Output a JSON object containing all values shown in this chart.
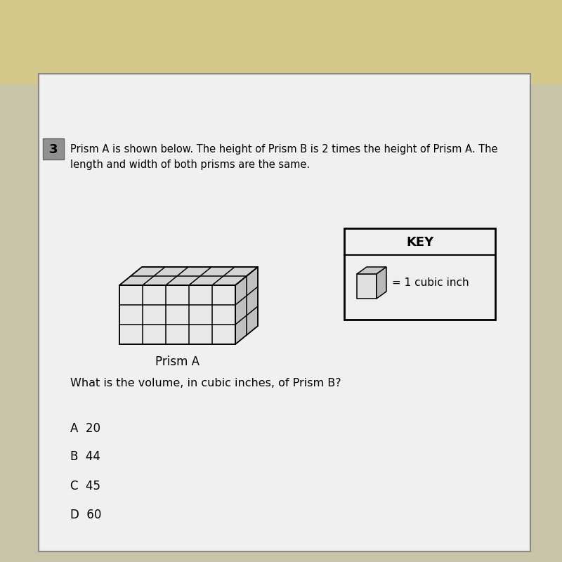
{
  "bg_color_top": "#d4c98a",
  "bg_color_main": "#c8c4a8",
  "paper_color": "#d8d8d8",
  "question_num": "3",
  "question_text_line1": "Prism A is shown below. The height of Prism B is 2 times the height of Prism A. The",
  "question_text_line2": "length and width of both prisms are the same.",
  "prism_label": "Prism A",
  "key_title": "KEY",
  "key_text": "= 1 cubic inch",
  "question2": "What is the volume, in cubic inches, of Prism B?",
  "choices": [
    "A  20",
    "B  44",
    "C  45",
    "D  60"
  ],
  "prism_cols": 5,
  "prism_rows": 3,
  "prism_depth": 2,
  "fig_width": 8,
  "fig_height": 8,
  "dpi": 100
}
